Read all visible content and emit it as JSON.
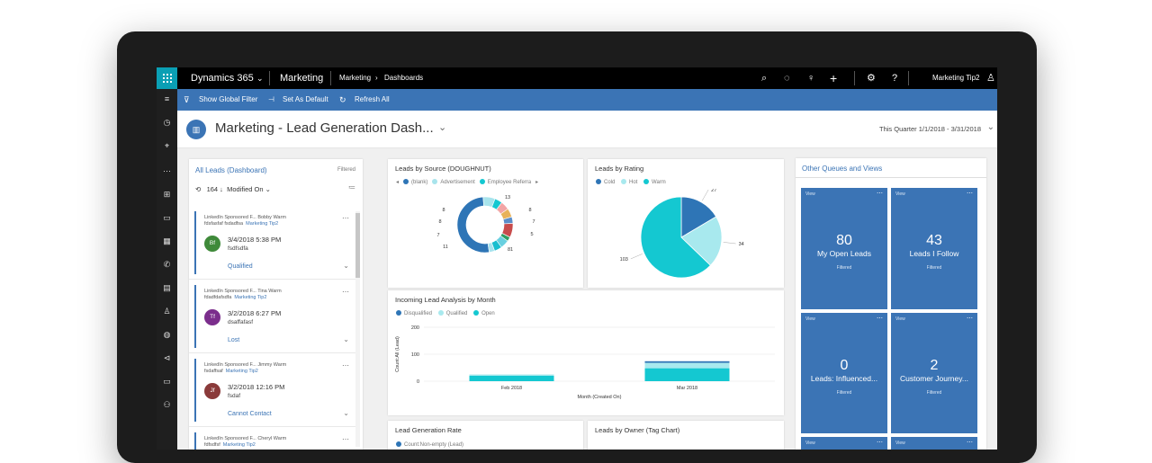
{
  "topbar": {
    "app_name": "Dynamics 365",
    "area": "Marketing",
    "breadcrumb_root": "Marketing",
    "breadcrumb_page": "Dashboards",
    "user": "Marketing Tip2"
  },
  "commandbar": {
    "show_global_filter": "Show Global Filter",
    "set_as_default": "Set As Default",
    "refresh_all": "Refresh All"
  },
  "header": {
    "title": "Marketing - Lead Generation Dash...",
    "date_range": "This Quarter 1/1/2018 - 3/31/2018"
  },
  "leads": {
    "title": "All Leads (Dashboard)",
    "filtered": "Filtered",
    "count": "164",
    "sort": "Modified On",
    "cards": [
      {
        "line1": "LinkedIn Sponsored F...   Bobby   Warm",
        "line2": "fdsfasfaf   fsdadfsa",
        "owner": "Marketing Tip2",
        "initials": "Bf",
        "avatar_color": "#3f8a3a",
        "date": "3/4/2018 5:38 PM",
        "name": "fsdfsdfa",
        "status": "Qualified"
      },
      {
        "line1": "LinkedIn Sponsored F...   Tina   Warm",
        "line2": "fdadfdafsdfa",
        "owner": "Marketing Tip2",
        "initials": "Tf",
        "avatar_color": "#7b2e8c",
        "date": "3/2/2018 6:27 PM",
        "name": "dsaffafasf",
        "status": "Lost"
      },
      {
        "line1": "LinkedIn Sponsored F...   Jimmy   Warm",
        "line2": "fsdaffsaf",
        "owner": "Marketing Tip2",
        "initials": "Jf",
        "avatar_color": "#8a3a3a",
        "date": "3/2/2018 12:16 PM",
        "name": "fsdaf",
        "status": "Cannot Contact"
      },
      {
        "line1": "LinkedIn Sponsored F...   Cheryl   Warm",
        "line2": "fdfsdfsf",
        "owner": "Marketing Tip2",
        "initials": "",
        "avatar_color": "#3b74b5",
        "date": "",
        "name": "",
        "status": ""
      }
    ]
  },
  "panels": {
    "by_source": "Leads by Source (DOUGHNUT)",
    "by_rating": "Leads by Rating",
    "incoming": "Incoming Lead Analysis by Month",
    "gen_rate": "Lead Generation Rate",
    "gen_rate_legend": "Count:Non-empty (Lead)",
    "by_owner": "Leads by Owner (Tag Chart)"
  },
  "chart_data": [
    {
      "type": "pie",
      "title": "Leads by Source (DOUGHNUT)",
      "legend": [
        "(blank)",
        "Advertisement",
        "Employee Referra"
      ],
      "slices": [
        {
          "label": "(blank)",
          "value": 81,
          "color": "#2e75b6"
        },
        {
          "label": "Advertisement",
          "value": 11,
          "color": "#a8e4ec"
        },
        {
          "label": "Employee Referra",
          "value": 7,
          "color": "#14c8d1"
        },
        {
          "label": "",
          "value": 8,
          "color": "#f2a5a5"
        },
        {
          "label": "",
          "value": 8,
          "color": "#e8b25a"
        },
        {
          "label": "",
          "value": 6,
          "color": "#5b8dc9"
        },
        {
          "label": "",
          "value": 13,
          "color": "#c84c4c"
        },
        {
          "label": "",
          "value": 4,
          "color": "#2e9e63"
        },
        {
          "label": "",
          "value": 8,
          "color": "#68d0e0"
        },
        {
          "label": "",
          "value": 7,
          "color": "#17becf"
        },
        {
          "label": "",
          "value": 5,
          "color": "#a6e3ee"
        }
      ],
      "value_labels": [
        "13",
        "8",
        "7",
        "5",
        "81",
        "11",
        "7",
        "8",
        "8"
      ]
    },
    {
      "type": "pie",
      "title": "Leads by Rating",
      "slices": [
        {
          "label": "Cold",
          "value": 27,
          "color": "#2e75b6"
        },
        {
          "label": "Hot",
          "value": 34,
          "color": "#a8e9ee"
        },
        {
          "label": "Warm",
          "value": 103,
          "color": "#14c8d1"
        }
      ]
    },
    {
      "type": "bar",
      "title": "Incoming Lead Analysis by Month",
      "categories": [
        "Feb 2018",
        "Mar 2018"
      ],
      "series": [
        {
          "name": "Disqualified",
          "values": [
            0,
            6
          ],
          "color": "#2e75b6"
        },
        {
          "name": "Qualified",
          "values": [
            5,
            20
          ],
          "color": "#a8e9ee"
        },
        {
          "name": "Open",
          "values": [
            20,
            48
          ],
          "color": "#14c8d1"
        }
      ],
      "xlabel": "Month (Created On)",
      "ylabel": "Count:All (Lead)",
      "yticks": [
        "200",
        "100",
        "0"
      ],
      "ylim": [
        0,
        200
      ]
    }
  ],
  "queues": {
    "title": "Other Queues and Views",
    "tiles": [
      {
        "view": "View",
        "count": "80",
        "label": "My Open Leads",
        "filter": "Filtered"
      },
      {
        "view": "View",
        "count": "43",
        "label": "Leads I Follow",
        "filter": "Filtered"
      },
      {
        "view": "View",
        "count": "0",
        "label": "Leads: Influenced...",
        "filter": "Filtered"
      },
      {
        "view": "View",
        "count": "2",
        "label": "Customer Journey...",
        "filter": "Filtered"
      },
      {
        "view": "View",
        "count": "",
        "label": "",
        "filter": ""
      },
      {
        "view": "View",
        "count": "",
        "label": "",
        "filter": ""
      }
    ]
  }
}
